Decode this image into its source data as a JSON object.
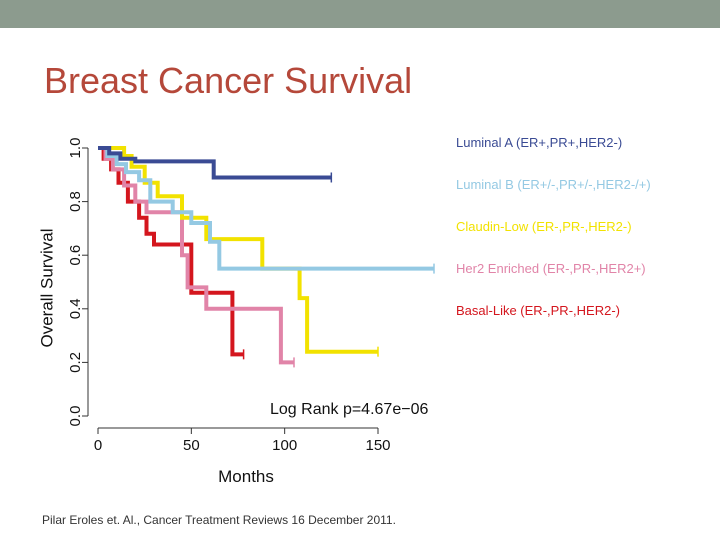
{
  "slide": {
    "title": "Breast Cancer Survival",
    "citation": "Pilar Eroles et. Al., Cancer Treatment Reviews 16 December 2011."
  },
  "colors": {
    "title": "#b5483a",
    "top_bar": "#8c9b8e"
  },
  "chart_data": {
    "type": "line",
    "xlabel": "Months",
    "ylabel": "Overall Survival",
    "xlim": [
      0,
      180
    ],
    "ylim": [
      0,
      1.0
    ],
    "x_ticks": [
      0,
      50,
      100,
      150
    ],
    "y_ticks": [
      0.0,
      0.2,
      0.4,
      0.6,
      0.8,
      1.0
    ],
    "x_tick_labels": [
      "0",
      "50",
      "100",
      "150"
    ],
    "y_tick_labels": [
      "0.0",
      "0.2",
      "0.4",
      "0.6",
      "0.8",
      "1.0"
    ],
    "annotation": "Log Rank p=4.67e−06",
    "series": [
      {
        "name": "Luminal A (ER+,PR+,HER2-)",
        "color": "#3a4b94",
        "points": [
          [
            0,
            1.0
          ],
          [
            6,
            1.0
          ],
          [
            6,
            0.98
          ],
          [
            12,
            0.98
          ],
          [
            12,
            0.96
          ],
          [
            20,
            0.96
          ],
          [
            20,
            0.95
          ],
          [
            62,
            0.95
          ],
          [
            62,
            0.89
          ],
          [
            125,
            0.89
          ]
        ]
      },
      {
        "name": "Luminal B (ER+/-,PR+/-,HER2-/+)",
        "color": "#94c9e3",
        "points": [
          [
            0,
            1.0
          ],
          [
            5,
            1.0
          ],
          [
            5,
            0.97
          ],
          [
            10,
            0.97
          ],
          [
            10,
            0.94
          ],
          [
            15,
            0.94
          ],
          [
            15,
            0.91
          ],
          [
            22,
            0.91
          ],
          [
            22,
            0.88
          ],
          [
            28,
            0.88
          ],
          [
            28,
            0.8
          ],
          [
            40,
            0.8
          ],
          [
            40,
            0.76
          ],
          [
            50,
            0.76
          ],
          [
            50,
            0.72
          ],
          [
            60,
            0.72
          ],
          [
            60,
            0.65
          ],
          [
            65,
            0.65
          ],
          [
            65,
            0.55
          ],
          [
            180,
            0.55
          ]
        ]
      },
      {
        "name": "Claudin-Low (ER-,PR-,HER2-)",
        "color": "#f2e200",
        "points": [
          [
            0,
            1.0
          ],
          [
            14,
            1.0
          ],
          [
            14,
            0.97
          ],
          [
            18,
            0.97
          ],
          [
            18,
            0.93
          ],
          [
            25,
            0.93
          ],
          [
            25,
            0.87
          ],
          [
            32,
            0.87
          ],
          [
            32,
            0.82
          ],
          [
            45,
            0.82
          ],
          [
            45,
            0.74
          ],
          [
            58,
            0.74
          ],
          [
            58,
            0.66
          ],
          [
            88,
            0.66
          ],
          [
            88,
            0.55
          ],
          [
            108,
            0.55
          ],
          [
            108,
            0.44
          ],
          [
            112,
            0.44
          ],
          [
            112,
            0.24
          ],
          [
            150,
            0.24
          ]
        ]
      },
      {
        "name": "Her2 Enriched (ER-,PR-,HER2+)",
        "color": "#e184a8",
        "points": [
          [
            0,
            1.0
          ],
          [
            4,
            1.0
          ],
          [
            4,
            0.96
          ],
          [
            8,
            0.96
          ],
          [
            8,
            0.92
          ],
          [
            14,
            0.92
          ],
          [
            14,
            0.86
          ],
          [
            20,
            0.86
          ],
          [
            20,
            0.8
          ],
          [
            26,
            0.8
          ],
          [
            26,
            0.76
          ],
          [
            45,
            0.76
          ],
          [
            45,
            0.6
          ],
          [
            48,
            0.6
          ],
          [
            48,
            0.48
          ],
          [
            58,
            0.48
          ],
          [
            58,
            0.4
          ],
          [
            98,
            0.4
          ],
          [
            98,
            0.2
          ],
          [
            105,
            0.2
          ]
        ]
      },
      {
        "name": "Basal-Like (ER-,PR-,HER2-)",
        "color": "#d4161e",
        "points": [
          [
            0,
            1.0
          ],
          [
            3,
            1.0
          ],
          [
            3,
            0.96
          ],
          [
            7,
            0.96
          ],
          [
            7,
            0.92
          ],
          [
            11,
            0.92
          ],
          [
            11,
            0.87
          ],
          [
            16,
            0.87
          ],
          [
            16,
            0.8
          ],
          [
            22,
            0.8
          ],
          [
            22,
            0.74
          ],
          [
            26,
            0.74
          ],
          [
            26,
            0.68
          ],
          [
            30,
            0.68
          ],
          [
            30,
            0.64
          ],
          [
            50,
            0.64
          ],
          [
            50,
            0.46
          ],
          [
            72,
            0.46
          ],
          [
            72,
            0.23
          ],
          [
            78,
            0.23
          ]
        ]
      }
    ]
  }
}
